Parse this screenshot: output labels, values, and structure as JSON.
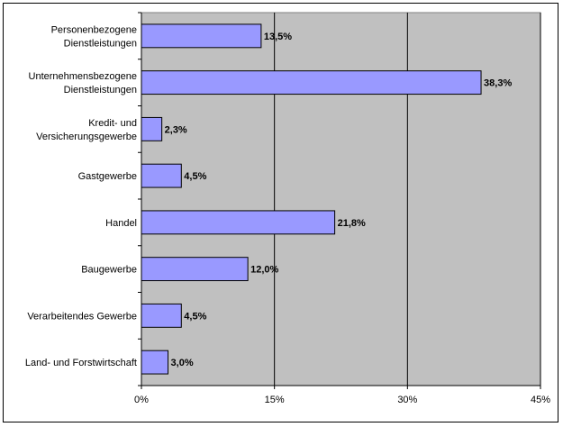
{
  "chart_data": {
    "type": "bar",
    "orientation": "horizontal",
    "categories": [
      [
        "Personenbezogene",
        "Dienstleistungen"
      ],
      [
        "Unternehmensbezogene",
        "Dienstleistungen"
      ],
      [
        "Kredit- und",
        "Versicherungsgewerbe"
      ],
      [
        "Gastgewerbe"
      ],
      [
        "Handel"
      ],
      [
        "Baugewerbe"
      ],
      [
        "Verarbeitendes Gewerbe"
      ],
      [
        "Land- und Forstwirtschaft"
      ]
    ],
    "values": [
      13.5,
      38.3,
      2.3,
      4.5,
      21.8,
      12.0,
      4.5,
      3.0
    ],
    "value_labels": [
      "13,5%",
      "38,3%",
      "2,3%",
      "4,5%",
      "21,8%",
      "12,0%",
      "4,5%",
      "3,0%"
    ],
    "xlim": [
      0,
      45
    ],
    "xticks": [
      0,
      15,
      30,
      45
    ],
    "xtick_labels": [
      "0%",
      "15%",
      "30%",
      "45%"
    ],
    "grid": "vertical",
    "legend": "none",
    "title": "",
    "xlabel": "",
    "ylabel": "",
    "colors": {
      "bar_fill": "#9999ff",
      "bar_stroke": "#000000",
      "plot_background": "#c0c0c0",
      "gridline": "#000000"
    }
  }
}
